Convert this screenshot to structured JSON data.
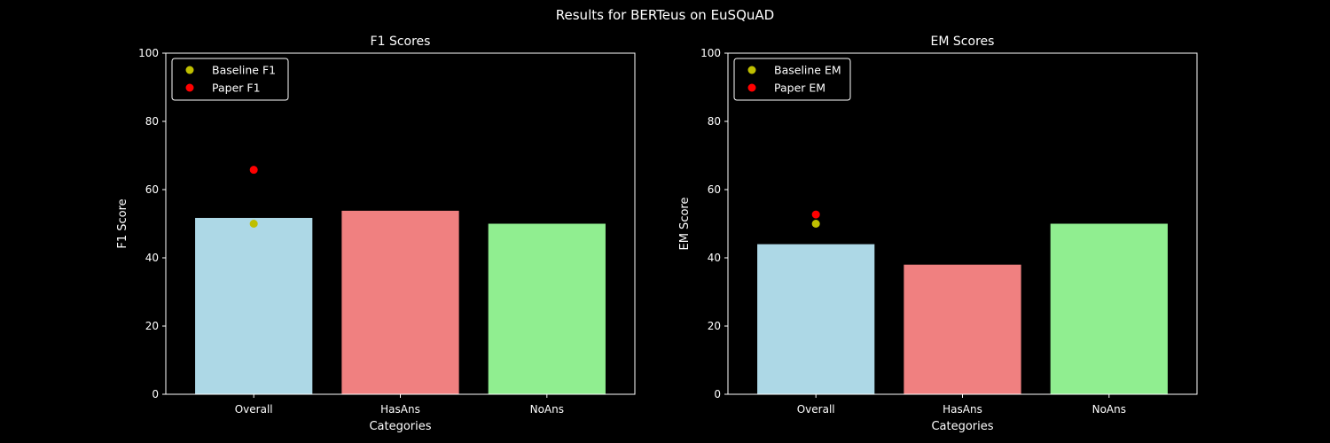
{
  "figure": {
    "title": "Results for BERTeus on EuSQuAD"
  },
  "chart_data": [
    {
      "type": "bar",
      "title": "F1 Scores",
      "xlabel": "Categories",
      "ylabel": "F1 Score",
      "ylim": [
        0,
        100
      ],
      "yticks": [
        0,
        20,
        40,
        60,
        80,
        100
      ],
      "categories": [
        "Overall",
        "HasAns",
        "NoAns"
      ],
      "values": [
        51.7,
        53.8,
        50.0
      ],
      "bar_colors": [
        "#add8e6",
        "#f08080",
        "#90ee90"
      ],
      "grid": false,
      "legend_position": "upper-left",
      "markers": [
        {
          "name": "Baseline F1",
          "color": "#bfbf00",
          "category": "Overall",
          "value": 50.0
        },
        {
          "name": "Paper F1",
          "color": "#ff0000",
          "category": "Overall",
          "value": 65.8
        }
      ]
    },
    {
      "type": "bar",
      "title": "EM Scores",
      "xlabel": "Categories",
      "ylabel": "EM Score",
      "ylim": [
        0,
        100
      ],
      "yticks": [
        0,
        20,
        40,
        60,
        80,
        100
      ],
      "categories": [
        "Overall",
        "HasAns",
        "NoAns"
      ],
      "values": [
        44.0,
        38.0,
        50.0
      ],
      "bar_colors": [
        "#add8e6",
        "#f08080",
        "#90ee90"
      ],
      "grid": false,
      "legend_position": "upper-left",
      "markers": [
        {
          "name": "Baseline EM",
          "color": "#bfbf00",
          "category": "Overall",
          "value": 50.0
        },
        {
          "name": "Paper EM",
          "color": "#ff0000",
          "category": "Overall",
          "value": 52.7
        }
      ]
    }
  ]
}
